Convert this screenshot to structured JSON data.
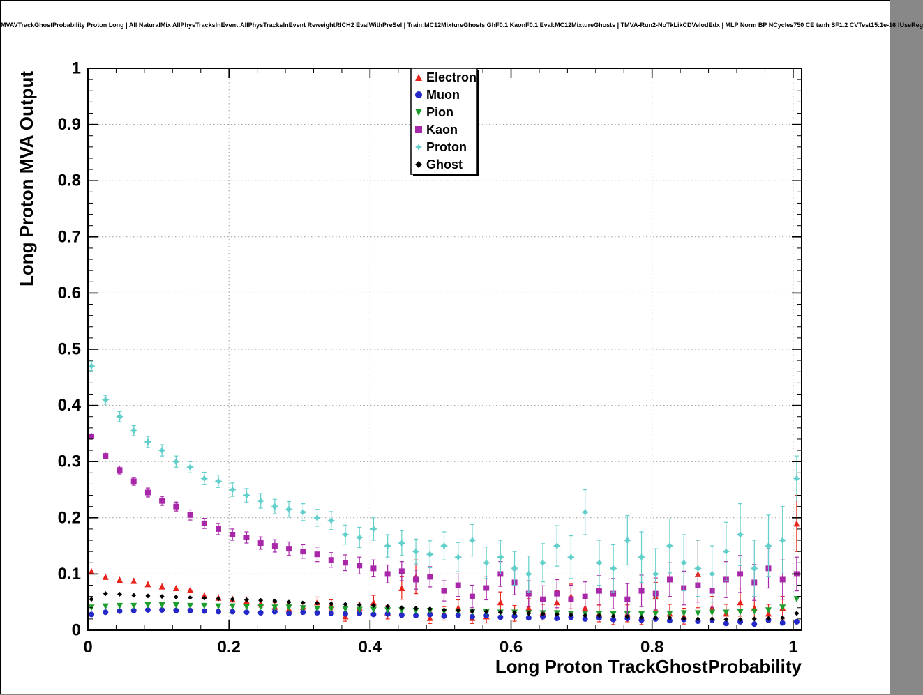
{
  "header": {
    "title": "MVAVTrackGhostProbability Proton Long | All NaturalMix AllPhysTracksInEvent:AllPhysTracksInEvent ReweightRICH2 EvalWithPreSel | Train:MC12MixtureGhosts GhF0.1 KaonF0.1 Eval:MC12MixtureGhosts | TMVA-Run2-NoTkLikCDVelodEdx | MLP Norm BP NCycles750 CE tanh SF1.2 CVTest15:1e-16 !UseReg"
  },
  "chart_data": {
    "type": "scatter",
    "title": "MVAVTrackGhostProbability Proton Long | All NaturalMix AllPhysTracksInEvent:AllPhysTracksInEvent ReweightRICH2 EvalWithPreSel | Train:MC12MixtureGhosts GhF0.1 KaonF0.1 Eval:MC12MixtureGhosts | TMVA-Run2-NoTkLikCDVelodEdx | MLP Norm BP NCycles750 CE tanh SF1.2 CVTest15:1e-16 !UseReg",
    "xlabel": "Long Proton TrackGhostProbability",
    "ylabel": "Long Proton MVA Output",
    "xlim": [
      0,
      1.012
    ],
    "ylim": [
      0,
      1
    ],
    "xticks": [
      0,
      0.2,
      0.4,
      0.6,
      0.8,
      1
    ],
    "yticks": [
      0,
      0.1,
      0.2,
      0.3,
      0.4,
      0.5,
      0.6,
      0.7,
      0.8,
      0.9,
      1
    ],
    "x_minor_step": 0.04,
    "y_minor_step": 0.02,
    "grid": true,
    "grid_color": "#999999",
    "legend_position": "top-center",
    "x": [
      0.005,
      0.025,
      0.045,
      0.065,
      0.085,
      0.105,
      0.125,
      0.145,
      0.165,
      0.185,
      0.205,
      0.225,
      0.245,
      0.265,
      0.285,
      0.305,
      0.325,
      0.345,
      0.365,
      0.385,
      0.405,
      0.425,
      0.445,
      0.465,
      0.485,
      0.505,
      0.525,
      0.545,
      0.565,
      0.585,
      0.605,
      0.625,
      0.645,
      0.665,
      0.685,
      0.705,
      0.725,
      0.745,
      0.765,
      0.785,
      0.805,
      0.825,
      0.845,
      0.865,
      0.885,
      0.905,
      0.925,
      0.945,
      0.965,
      0.985,
      1.005
    ],
    "series": [
      {
        "name": "Electron",
        "color": "#e8231a",
        "marker": "triangle-up",
        "y": [
          0.105,
          0.095,
          0.09,
          0.088,
          0.082,
          0.078,
          0.075,
          0.072,
          0.062,
          0.058,
          0.055,
          0.052,
          0.048,
          0.042,
          0.038,
          0.042,
          0.05,
          0.045,
          0.025,
          0.04,
          0.05,
          0.032,
          0.075,
          0.095,
          0.022,
          0.03,
          0.04,
          0.022,
          0.025,
          0.05,
          0.03,
          0.04,
          0.032,
          0.05,
          0.06,
          0.04,
          0.03,
          0.022,
          0.03,
          0.022,
          0.06,
          0.03,
          0.025,
          0.1,
          0.04,
          0.03,
          0.05,
          0.04,
          0.03,
          0.04,
          0.19
        ],
        "yerr": [
          0.004,
          0.004,
          0.004,
          0.005,
          0.005,
          0.005,
          0.005,
          0.006,
          0.006,
          0.006,
          0.006,
          0.007,
          0.007,
          0.007,
          0.008,
          0.008,
          0.009,
          0.009,
          0.009,
          0.01,
          0.012,
          0.012,
          0.02,
          0.03,
          0.01,
          0.012,
          0.014,
          0.01,
          0.012,
          0.018,
          0.014,
          0.016,
          0.014,
          0.02,
          0.022,
          0.018,
          0.015,
          0.012,
          0.015,
          0.012,
          0.025,
          0.016,
          0.014,
          0.06,
          0.02,
          0.016,
          0.025,
          0.02,
          0.016,
          0.02,
          0.05
        ]
      },
      {
        "name": "Muon",
        "color": "#2428c8",
        "marker": "circle",
        "y": [
          0.028,
          0.032,
          0.034,
          0.035,
          0.036,
          0.036,
          0.035,
          0.035,
          0.034,
          0.033,
          0.033,
          0.032,
          0.031,
          0.033,
          0.03,
          0.032,
          0.031,
          0.03,
          0.029,
          0.03,
          0.028,
          0.029,
          0.027,
          0.026,
          0.028,
          0.025,
          0.027,
          0.024,
          0.026,
          0.023,
          0.025,
          0.022,
          0.024,
          0.021,
          0.023,
          0.02,
          0.022,
          0.019,
          0.021,
          0.018,
          0.02,
          0.017,
          0.019,
          0.016,
          0.018,
          0.012,
          0.015,
          0.011,
          0.018,
          0.013,
          0.015
        ],
        "yerr": [
          0.002,
          0.002,
          0.002,
          0.002,
          0.002,
          0.002,
          0.002,
          0.002,
          0.002,
          0.002,
          0.002,
          0.002,
          0.002,
          0.003,
          0.003,
          0.003,
          0.003,
          0.003,
          0.003,
          0.003,
          0.003,
          0.003,
          0.003,
          0.003,
          0.003,
          0.003,
          0.003,
          0.003,
          0.003,
          0.003,
          0.004,
          0.004,
          0.004,
          0.004,
          0.004,
          0.004,
          0.004,
          0.004,
          0.004,
          0.004,
          0.004,
          0.004,
          0.004,
          0.004,
          0.004,
          0.004,
          0.005,
          0.004,
          0.005,
          0.005,
          0.005
        ]
      },
      {
        "name": "Pion",
        "color": "#1d9e2c",
        "marker": "triangle-down",
        "y": [
          0.04,
          0.042,
          0.043,
          0.043,
          0.044,
          0.044,
          0.044,
          0.043,
          0.043,
          0.042,
          0.042,
          0.041,
          0.041,
          0.04,
          0.04,
          0.039,
          0.038,
          0.038,
          0.037,
          0.036,
          0.036,
          0.035,
          0.035,
          0.034,
          0.034,
          0.033,
          0.033,
          0.032,
          0.032,
          0.031,
          0.031,
          0.03,
          0.03,
          0.03,
          0.029,
          0.029,
          0.029,
          0.028,
          0.028,
          0.028,
          0.029,
          0.029,
          0.03,
          0.03,
          0.031,
          0.031,
          0.032,
          0.033,
          0.035,
          0.04,
          0.055
        ],
        "yerr": [
          0.001,
          0.001,
          0.001,
          0.001,
          0.001,
          0.001,
          0.001,
          0.001,
          0.001,
          0.001,
          0.001,
          0.001,
          0.001,
          0.001,
          0.001,
          0.001,
          0.001,
          0.001,
          0.001,
          0.001,
          0.001,
          0.001,
          0.001,
          0.001,
          0.001,
          0.002,
          0.002,
          0.002,
          0.002,
          0.002,
          0.002,
          0.002,
          0.002,
          0.002,
          0.002,
          0.002,
          0.002,
          0.002,
          0.002,
          0.002,
          0.002,
          0.002,
          0.002,
          0.002,
          0.002,
          0.002,
          0.002,
          0.002,
          0.003,
          0.003,
          0.004
        ]
      },
      {
        "name": "Kaon",
        "color": "#a826a8",
        "marker": "square",
        "y": [
          0.345,
          0.31,
          0.285,
          0.265,
          0.245,
          0.23,
          0.22,
          0.205,
          0.19,
          0.18,
          0.17,
          0.165,
          0.155,
          0.15,
          0.145,
          0.14,
          0.135,
          0.125,
          0.12,
          0.115,
          0.11,
          0.1,
          0.105,
          0.09,
          0.095,
          0.07,
          0.08,
          0.06,
          0.075,
          0.1,
          0.085,
          0.065,
          0.055,
          0.065,
          0.055,
          0.06,
          0.07,
          0.065,
          0.055,
          0.07,
          0.065,
          0.09,
          0.075,
          0.08,
          0.07,
          0.09,
          0.1,
          0.085,
          0.11,
          0.09,
          0.1
        ],
        "yerr": [
          0.006,
          0.006,
          0.007,
          0.007,
          0.008,
          0.008,
          0.008,
          0.009,
          0.009,
          0.01,
          0.01,
          0.01,
          0.011,
          0.011,
          0.012,
          0.012,
          0.013,
          0.013,
          0.014,
          0.015,
          0.015,
          0.016,
          0.017,
          0.017,
          0.018,
          0.018,
          0.02,
          0.02,
          0.021,
          0.022,
          0.022,
          0.023,
          0.024,
          0.025,
          0.025,
          0.026,
          0.027,
          0.027,
          0.028,
          0.028,
          0.028,
          0.03,
          0.03,
          0.03,
          0.03,
          0.032,
          0.033,
          0.032,
          0.035,
          0.035,
          0.03
        ]
      },
      {
        "name": "Proton",
        "color": "#62cfcb",
        "marker": "star",
        "y": [
          0.47,
          0.41,
          0.38,
          0.355,
          0.335,
          0.32,
          0.3,
          0.29,
          0.27,
          0.265,
          0.25,
          0.24,
          0.23,
          0.22,
          0.215,
          0.21,
          0.2,
          0.195,
          0.17,
          0.165,
          0.18,
          0.15,
          0.155,
          0.14,
          0.135,
          0.15,
          0.13,
          0.16,
          0.12,
          0.13,
          0.11,
          0.1,
          0.12,
          0.15,
          0.13,
          0.21,
          0.12,
          0.11,
          0.16,
          0.13,
          0.1,
          0.15,
          0.12,
          0.11,
          0.1,
          0.14,
          0.17,
          0.11,
          0.15,
          0.16,
          0.27
        ],
        "yerr": [
          0.008,
          0.008,
          0.009,
          0.009,
          0.01,
          0.01,
          0.01,
          0.01,
          0.011,
          0.011,
          0.012,
          0.012,
          0.013,
          0.013,
          0.014,
          0.015,
          0.015,
          0.016,
          0.017,
          0.018,
          0.02,
          0.02,
          0.022,
          0.022,
          0.024,
          0.025,
          0.026,
          0.028,
          0.028,
          0.03,
          0.03,
          0.032,
          0.034,
          0.036,
          0.038,
          0.04,
          0.04,
          0.042,
          0.044,
          0.045,
          0.045,
          0.048,
          0.05,
          0.05,
          0.05,
          0.052,
          0.055,
          0.05,
          0.055,
          0.06,
          0.04
        ]
      },
      {
        "name": "Ghost",
        "color": "#000000",
        "marker": "diamond",
        "y": [
          0.055,
          0.065,
          0.064,
          0.062,
          0.061,
          0.06,
          0.059,
          0.058,
          0.057,
          0.056,
          0.055,
          0.054,
          0.053,
          0.052,
          0.05,
          0.049,
          0.048,
          0.047,
          0.046,
          0.045,
          0.044,
          0.042,
          0.04,
          0.039,
          0.038,
          0.036,
          0.035,
          0.034,
          0.033,
          0.032,
          0.031,
          0.03,
          0.029,
          0.028,
          0.027,
          0.026,
          0.026,
          0.025,
          0.024,
          0.023,
          0.022,
          0.022,
          0.021,
          0.02,
          0.02,
          0.019,
          0.019,
          0.02,
          0.021,
          0.022,
          0.03
        ],
        "yerr": [
          0.002,
          0.002,
          0.002,
          0.002,
          0.002,
          0.002,
          0.002,
          0.002,
          0.002,
          0.002,
          0.002,
          0.002,
          0.002,
          0.002,
          0.002,
          0.002,
          0.002,
          0.002,
          0.002,
          0.002,
          0.003,
          0.003,
          0.003,
          0.003,
          0.003,
          0.003,
          0.003,
          0.003,
          0.003,
          0.003,
          0.003,
          0.003,
          0.003,
          0.003,
          0.003,
          0.003,
          0.003,
          0.003,
          0.003,
          0.003,
          0.004,
          0.004,
          0.004,
          0.004,
          0.004,
          0.004,
          0.004,
          0.004,
          0.004,
          0.004,
          0.004
        ]
      }
    ]
  }
}
